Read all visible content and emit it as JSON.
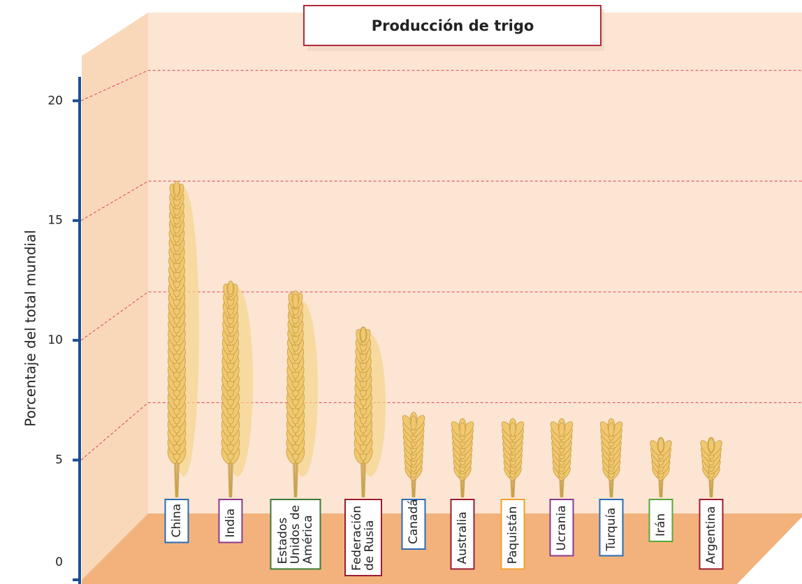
{
  "chart_data": {
    "type": "pictorial-bar",
    "title": "Producción de trigo",
    "y_label": "Porcentaje del total mundial",
    "categories": [
      "China",
      "India",
      "Estados Unidos de América",
      "Federación de Rusia",
      "Canadá",
      "Australia",
      "Paquistán",
      "Ucrania",
      "Turquía",
      "Irán",
      "Argentina"
    ],
    "values": [
      15,
      10.5,
      9.9,
      8.4,
      4.4,
      4.1,
      4.1,
      4.1,
      4.1,
      3.4,
      3.4
    ],
    "box_colors": [
      "#2a6bb3",
      "#8b3a8f",
      "#3f7a3a",
      "#9b1c32",
      "#2a6bb3",
      "#9b1c32",
      "#f2a12e",
      "#8b3a8f",
      "#2a6bb3",
      "#5aa63c",
      "#9b1c32"
    ],
    "color": "#f0c870",
    "ylim": [
      0,
      21
    ],
    "yticks": [
      0,
      5,
      10,
      15,
      20
    ],
    "grid": true
  }
}
